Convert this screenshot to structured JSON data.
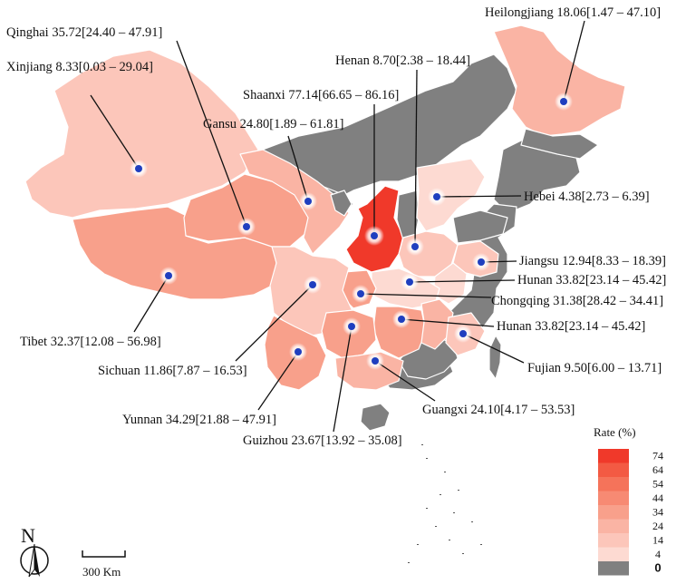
{
  "title": "Rate (%)",
  "legend": {
    "title": "Rate (%)",
    "classes": [
      {
        "label": "74",
        "color": "#f0392a"
      },
      {
        "label": "64",
        "color": "#f35a43"
      },
      {
        "label": "54",
        "color": "#f5735a"
      },
      {
        "label": "44",
        "color": "#f78a73"
      },
      {
        "label": "34",
        "color": "#f8a08b"
      },
      {
        "label": "24",
        "color": "#fab4a4"
      },
      {
        "label": "14",
        "color": "#fcc6ba"
      },
      {
        "label": "4",
        "color": "#fddad2"
      },
      {
        "label": "0",
        "color": "#808080"
      }
    ]
  },
  "labels": [
    {
      "id": "qinghai",
      "text": "Qinghai 35.72[24.40 – 47.91]"
    },
    {
      "id": "xinjiang",
      "text": "Xinjiang 8.33[0.03 – 29.04]"
    },
    {
      "id": "heilongjiang",
      "text": "Heilongjiang 18.06[1.47 – 47.10]"
    },
    {
      "id": "henan",
      "text": "Henan 8.70[2.38 – 18.44]"
    },
    {
      "id": "shaanxi",
      "text": "Shaanxi 77.14[66.65 – 86.16]"
    },
    {
      "id": "gansu",
      "text": "Gansu 24.80[1.89 – 61.81]"
    },
    {
      "id": "hebei",
      "text": "Hebei 4.38[2.73 – 6.39]"
    },
    {
      "id": "jiangsu",
      "text": "Jiangsu 12.94[8.33 – 18.39]"
    },
    {
      "id": "hunan1",
      "text": "Hunan 33.82[23.14 – 45.42]"
    },
    {
      "id": "chongqing",
      "text": "Chongqing 31.38[28.42 – 34.41]"
    },
    {
      "id": "hunan2",
      "text": "Hunan 33.82[23.14 – 45.42]"
    },
    {
      "id": "tibet",
      "text": "Tibet 32.37[12.08 – 56.98]"
    },
    {
      "id": "sichuan",
      "text": "Sichuan 11.86[7.87 – 16.53]"
    },
    {
      "id": "fujian",
      "text": "Fujian 9.50[6.00 – 13.71]"
    },
    {
      "id": "yunnan",
      "text": "Yunnan 34.29[21.88 – 47.91]"
    },
    {
      "id": "guangxi",
      "text": "Guangxi 24.10[4.17 – 53.53]"
    },
    {
      "id": "guizhou",
      "text": "Guizhou 23.67[13.92 – 35.08]"
    }
  ],
  "north_arrow": "N",
  "scale_bar": "300 Km",
  "colors": {
    "no_data": "#808080",
    "marker": "#1f3fbf",
    "border": "#ffffff"
  }
}
